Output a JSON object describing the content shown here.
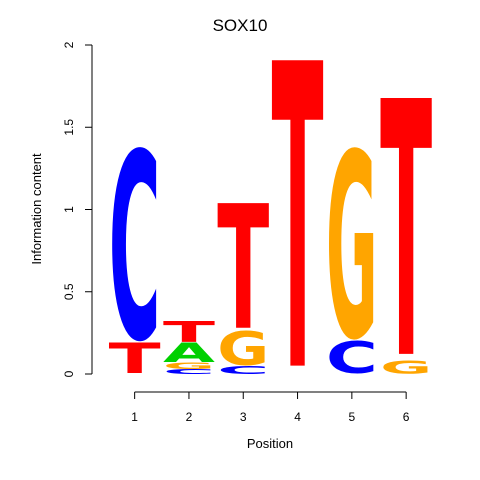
{
  "chart_data": {
    "type": "sequence-logo",
    "title": "SOX10",
    "xlabel": "Position",
    "ylabel": "Information content",
    "ylim": [
      0,
      2
    ],
    "yticks": [
      0,
      0.5,
      1,
      1.5,
      2
    ],
    "ytick_labels": [
      "0",
      "0.5",
      "1",
      "1.5",
      "2"
    ],
    "positions": [
      1,
      2,
      3,
      4,
      5,
      6
    ],
    "xtick_labels": [
      "1",
      "2",
      "3",
      "4",
      "5",
      "6"
    ],
    "colors": {
      "A": "#00d000",
      "C": "#0000ff",
      "G": "#ffa500",
      "T": "#ff0000"
    },
    "columns": [
      {
        "position": 1,
        "letters": [
          {
            "base": "T",
            "height": 0.19
          },
          {
            "base": "C",
            "height": 1.17
          }
        ]
      },
      {
        "position": 2,
        "letters": [
          {
            "base": "C",
            "height": 0.03
          },
          {
            "base": "G",
            "height": 0.04
          },
          {
            "base": "A",
            "height": 0.12
          },
          {
            "base": "T",
            "height": 0.13
          }
        ]
      },
      {
        "position": 3,
        "letters": [
          {
            "base": "C",
            "height": 0.05
          },
          {
            "base": "G",
            "height": 0.21
          },
          {
            "base": "T",
            "height": 0.78
          }
        ]
      },
      {
        "position": 4,
        "letters": [
          {
            "base": "T",
            "height": 1.91
          }
        ]
      },
      {
        "position": 5,
        "letters": [
          {
            "base": "C",
            "height": 0.2
          },
          {
            "base": "G",
            "height": 1.16
          }
        ]
      },
      {
        "position": 6,
        "letters": [
          {
            "base": "G",
            "height": 0.08
          },
          {
            "base": "T",
            "height": 1.6
          }
        ]
      }
    ]
  }
}
